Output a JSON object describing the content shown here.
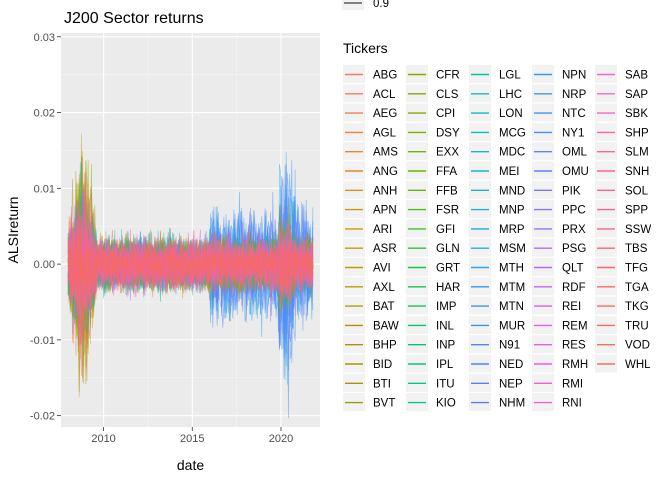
{
  "chart_data": {
    "type": "line",
    "title": "J200 Sector returns",
    "xlabel": "date",
    "ylabel": "ALSIreturn",
    "x_ticks": [
      "2010",
      "2015",
      "2020"
    ],
    "x_tick_values": [
      2010,
      2015,
      2020
    ],
    "xlim": [
      2007.6,
      2022.2
    ],
    "data_x_range": [
      2008.0,
      2021.8
    ],
    "y_ticks": [
      "-0.02",
      "-0.01",
      "0.00",
      "0.01",
      "0.02",
      "0.03"
    ],
    "y_tick_values": [
      -0.02,
      -0.01,
      0.0,
      0.01,
      0.02,
      0.03
    ],
    "ylim": [
      -0.0215,
      0.0305
    ],
    "grid": true,
    "legend_position": "right",
    "size_legend_label": "0.9",
    "legend_title": "Tickers",
    "series": [
      {
        "name": "ABG",
        "color": "#F8766D"
      },
      {
        "name": "ACL",
        "color": "#F77A5E"
      },
      {
        "name": "AEG",
        "color": "#F37E4F"
      },
      {
        "name": "AGL",
        "color": "#EE8340"
      },
      {
        "name": "AMS",
        "color": "#E88732"
      },
      {
        "name": "ANG",
        "color": "#E28B26"
      },
      {
        "name": "ANH",
        "color": "#DB8F1B"
      },
      {
        "name": "APN",
        "color": "#D39312"
      },
      {
        "name": "ARI",
        "color": "#CB970B"
      },
      {
        "name": "ASR",
        "color": "#C39A07"
      },
      {
        "name": "AVI",
        "color": "#BA9E05"
      },
      {
        "name": "AXL",
        "color": "#B1A104"
      },
      {
        "name": "BAT",
        "color": "#A8A400"
      },
      {
        "name": "BAW",
        "color": "#B58A10"
      },
      {
        "name": "BHP",
        "color": "#AE8F0C"
      },
      {
        "name": "BID",
        "color": "#A79409"
      },
      {
        "name": "BTI",
        "color": "#A09907"
      },
      {
        "name": "BVT",
        "color": "#999E05"
      },
      {
        "name": "CFR",
        "color": "#92A303"
      },
      {
        "name": "CLS",
        "color": "#8AA802"
      },
      {
        "name": "CPI",
        "color": "#82AC00"
      },
      {
        "name": "DSY",
        "color": "#7AB000"
      },
      {
        "name": "EXX",
        "color": "#71B400"
      },
      {
        "name": "FFA",
        "color": "#67B800"
      },
      {
        "name": "FFB",
        "color": "#5CBB0A"
      },
      {
        "name": "FSR",
        "color": "#4FBE19"
      },
      {
        "name": "GFI",
        "color": "#40C126"
      },
      {
        "name": "GLN",
        "color": "#2CC333"
      },
      {
        "name": "GRT",
        "color": "#1BC441"
      },
      {
        "name": "HAR",
        "color": "#11C54E"
      },
      {
        "name": "IMP",
        "color": "#0CC55B"
      },
      {
        "name": "INL",
        "color": "#09C567"
      },
      {
        "name": "INP",
        "color": "#08C573"
      },
      {
        "name": "IPL",
        "color": "#08C47F"
      },
      {
        "name": "ITU",
        "color": "#09C38A"
      },
      {
        "name": "KIO",
        "color": "#0BC295"
      },
      {
        "name": "LGL",
        "color": "#0DC0A0"
      },
      {
        "name": "LHC",
        "color": "#10BEAA"
      },
      {
        "name": "LON",
        "color": "#13BCB4"
      },
      {
        "name": "MCG",
        "color": "#16B9BE"
      },
      {
        "name": "MDC",
        "color": "#19B6C7"
      },
      {
        "name": "MEI",
        "color": "#1CB3D0"
      },
      {
        "name": "MND",
        "color": "#1FB0D8"
      },
      {
        "name": "MNP",
        "color": "#22ACE0"
      },
      {
        "name": "MRP",
        "color": "#26A8E7"
      },
      {
        "name": "MSM",
        "color": "#2AA4ED"
      },
      {
        "name": "MTH",
        "color": "#2EA0F2"
      },
      {
        "name": "MTM",
        "color": "#339BF6"
      },
      {
        "name": "MTN",
        "color": "#3896F9"
      },
      {
        "name": "MUR",
        "color": "#3E91FB"
      },
      {
        "name": "N91",
        "color": "#448CFC"
      },
      {
        "name": "NED",
        "color": "#4A86FD"
      },
      {
        "name": "NEP",
        "color": "#5181FD"
      },
      {
        "name": "NHM",
        "color": "#587BFC"
      },
      {
        "name": "NPN",
        "color": "#2E9CF0"
      },
      {
        "name": "NRP",
        "color": "#3598F4"
      },
      {
        "name": "NTC",
        "color": "#3C93F8"
      },
      {
        "name": "NY1",
        "color": "#4A8CFB"
      },
      {
        "name": "OML",
        "color": "#5A86FC"
      },
      {
        "name": "OMU",
        "color": "#6A80FD"
      },
      {
        "name": "PIK",
        "color": "#7A7BFD"
      },
      {
        "name": "PPC",
        "color": "#8A76FC"
      },
      {
        "name": "PRX",
        "color": "#9A71FB"
      },
      {
        "name": "PSG",
        "color": "#A96DF9"
      },
      {
        "name": "QLT",
        "color": "#B769F6"
      },
      {
        "name": "RDF",
        "color": "#C465F2"
      },
      {
        "name": "REI",
        "color": "#D062EE"
      },
      {
        "name": "REM",
        "color": "#DA60E9"
      },
      {
        "name": "RES",
        "color": "#E35EE3"
      },
      {
        "name": "RMH",
        "color": "#EA5EDD"
      },
      {
        "name": "RMI",
        "color": "#F05ED6"
      },
      {
        "name": "RNI",
        "color": "#F45FCF"
      },
      {
        "name": "SAB",
        "color": "#F763C8"
      },
      {
        "name": "SAP",
        "color": "#F966C0"
      },
      {
        "name": "SBK",
        "color": "#FB64B7"
      },
      {
        "name": "SHP",
        "color": "#FC62AE"
      },
      {
        "name": "SLM",
        "color": "#FC61A5"
      },
      {
        "name": "SNH",
        "color": "#FC619C"
      },
      {
        "name": "SOL",
        "color": "#FB6193"
      },
      {
        "name": "SPP",
        "color": "#FA628A"
      },
      {
        "name": "SSW",
        "color": "#F96381"
      },
      {
        "name": "TBS",
        "color": "#F86579"
      },
      {
        "name": "TFG",
        "color": "#F76771"
      },
      {
        "name": "TGA",
        "color": "#F6696A"
      },
      {
        "name": "TKG",
        "color": "#F56B63"
      },
      {
        "name": "TRU",
        "color": "#F56D5D"
      },
      {
        "name": "VOD",
        "color": "#F56F58"
      },
      {
        "name": "WHL",
        "color": "#F57154"
      }
    ]
  }
}
